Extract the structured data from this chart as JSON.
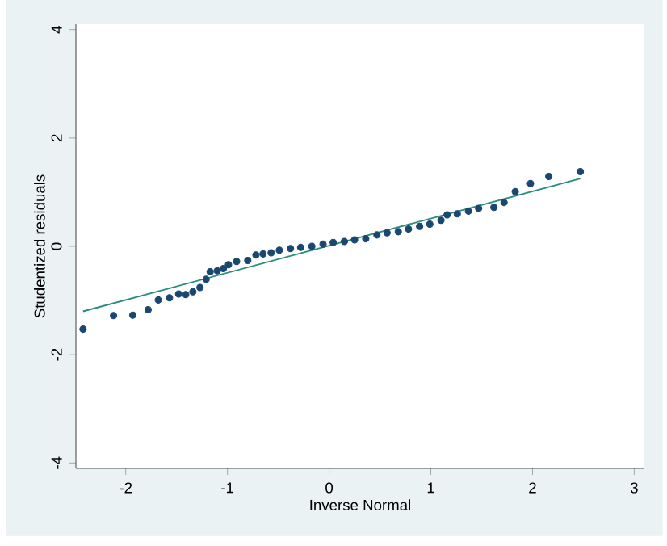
{
  "chart_data": {
    "type": "scatter",
    "xlabel": "Inverse Normal",
    "ylabel": "Studentized residuals",
    "xlim": [
      -2.49,
      3.1
    ],
    "ylim": [
      -4.1,
      4.1
    ],
    "xticks": [
      -2,
      -1,
      0,
      1,
      2,
      3
    ],
    "yticks": [
      -4,
      -2,
      0,
      2,
      4
    ],
    "marker": "circle",
    "series": [
      {
        "color": "#1a476f",
        "x": [
          -2.42,
          -2.12,
          -1.93,
          -1.78,
          -1.68,
          -1.57,
          -1.48,
          -1.41,
          -1.34,
          -1.27,
          -1.21,
          -1.17,
          -1.1,
          -1.04,
          -0.99,
          -0.91,
          -0.8,
          -0.72,
          -0.65,
          -0.57,
          -0.49,
          -0.38,
          -0.28,
          -0.17,
          -0.06,
          0.04,
          0.15,
          0.25,
          0.36,
          0.47,
          0.57,
          0.68,
          0.78,
          0.89,
          0.99,
          1.1,
          1.16,
          1.26,
          1.37,
          1.47,
          1.62,
          1.72,
          1.83,
          1.98,
          2.16,
          2.47
        ],
        "values": [
          -1.53,
          -1.28,
          -1.27,
          -1.17,
          -0.99,
          -0.95,
          -0.88,
          -0.89,
          -0.84,
          -0.76,
          -0.61,
          -0.47,
          -0.45,
          -0.41,
          -0.34,
          -0.28,
          -0.26,
          -0.16,
          -0.14,
          -0.12,
          -0.07,
          -0.04,
          -0.02,
          0,
          0.04,
          0.07,
          0.09,
          0.12,
          0.14,
          0.21,
          0.25,
          0.27,
          0.32,
          0.37,
          0.41,
          0.48,
          0.58,
          0.6,
          0.65,
          0.7,
          0.72,
          0.81,
          1.01,
          1.16,
          1.29,
          1.38
        ]
      },
      {
        "type": "line",
        "marker": "none",
        "color": "#2a8c7c",
        "x": [
          -2.42,
          2.47
        ],
        "values": [
          -1.2,
          1.25
        ]
      }
    ]
  }
}
